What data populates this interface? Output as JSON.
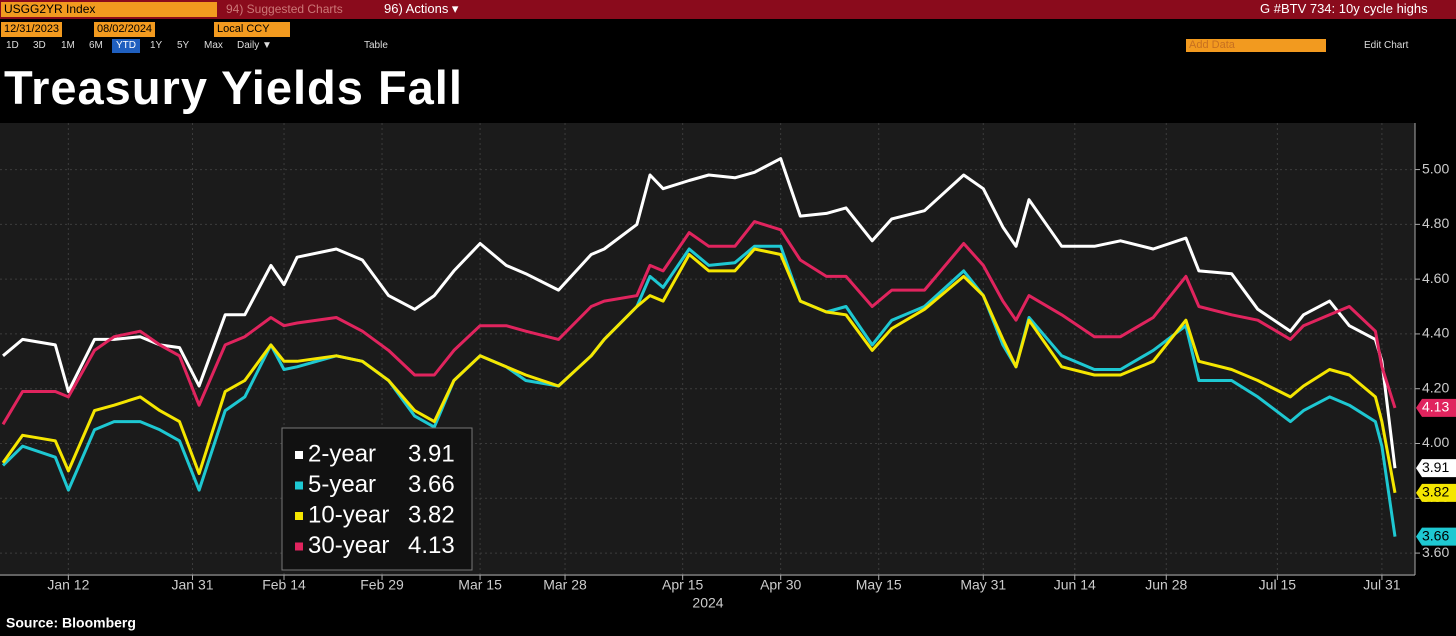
{
  "toolbar": {
    "security": "USGG2YR Index",
    "suggested": "94) Suggested Charts",
    "actions": "96) Actions ▾",
    "news": "G #BTV 734: 10y cycle highs",
    "start_date": "12/31/2023",
    "end_date": "08/02/2024",
    "currency": "Local CCY",
    "periods": [
      "1D",
      "3D",
      "1M",
      "6M",
      "YTD",
      "1Y",
      "5Y",
      "Max"
    ],
    "frequency": "Daily ▼",
    "table": "Table",
    "add_data": "Add Data",
    "edit_chart": "Edit Chart"
  },
  "source": "Source: Bloomberg",
  "chart_data": {
    "type": "line",
    "title": "Treasury Yields Fall",
    "xlabel": "2024",
    "x": [
      "2024-01-02",
      "2024-01-05",
      "2024-01-10",
      "2024-01-12",
      "2024-01-16",
      "2024-01-19",
      "2024-01-23",
      "2024-01-26",
      "2024-01-29",
      "2024-02-01",
      "2024-02-05",
      "2024-02-08",
      "2024-02-12",
      "2024-02-14",
      "2024-02-16",
      "2024-02-22",
      "2024-02-26",
      "2024-03-01",
      "2024-03-05",
      "2024-03-08",
      "2024-03-11",
      "2024-03-15",
      "2024-03-19",
      "2024-03-22",
      "2024-03-27",
      "2024-04-01",
      "2024-04-03",
      "2024-04-08",
      "2024-04-10",
      "2024-04-12",
      "2024-04-16",
      "2024-04-19",
      "2024-04-23",
      "2024-04-26",
      "2024-04-30",
      "2024-05-03",
      "2024-05-07",
      "2024-05-10",
      "2024-05-14",
      "2024-05-17",
      "2024-05-22",
      "2024-05-28",
      "2024-05-31",
      "2024-06-03",
      "2024-06-05",
      "2024-06-07",
      "2024-06-12",
      "2024-06-17",
      "2024-06-21",
      "2024-06-26",
      "2024-07-01",
      "2024-07-03",
      "2024-07-08",
      "2024-07-12",
      "2024-07-17",
      "2024-07-19",
      "2024-07-23",
      "2024-07-26",
      "2024-07-30",
      "2024-07-31",
      "2024-08-02"
    ],
    "series": [
      {
        "name": "2-year",
        "color": "#ffffff",
        "values": [
          4.32,
          4.38,
          4.36,
          4.19,
          4.38,
          4.38,
          4.39,
          4.36,
          4.35,
          4.21,
          4.47,
          4.47,
          4.65,
          4.58,
          4.68,
          4.71,
          4.67,
          4.54,
          4.49,
          4.54,
          4.63,
          4.73,
          4.65,
          4.62,
          4.56,
          4.69,
          4.71,
          4.8,
          4.98,
          4.93,
          4.96,
          4.98,
          4.97,
          4.99,
          5.04,
          4.83,
          4.84,
          4.86,
          4.74,
          4.82,
          4.85,
          4.98,
          4.93,
          4.79,
          4.72,
          4.89,
          4.72,
          4.72,
          4.74,
          4.71,
          4.75,
          4.63,
          4.62,
          4.49,
          4.41,
          4.47,
          4.52,
          4.43,
          4.38,
          4.3,
          3.91
        ]
      },
      {
        "name": "5-year",
        "color": "#1ec8d2",
        "values": [
          3.92,
          3.99,
          3.95,
          3.83,
          4.05,
          4.08,
          4.08,
          4.05,
          4.01,
          3.83,
          4.12,
          4.17,
          4.36,
          4.27,
          4.28,
          4.32,
          4.3,
          4.23,
          4.1,
          4.06,
          4.23,
          4.32,
          4.28,
          4.23,
          4.21,
          4.32,
          4.38,
          4.5,
          4.61,
          4.57,
          4.71,
          4.65,
          4.66,
          4.72,
          4.72,
          4.52,
          4.48,
          4.5,
          4.36,
          4.45,
          4.5,
          4.63,
          4.54,
          4.36,
          4.28,
          4.46,
          4.32,
          4.27,
          4.27,
          4.34,
          4.43,
          4.23,
          4.23,
          4.17,
          4.08,
          4.12,
          4.17,
          4.14,
          4.08,
          3.99,
          3.66
        ]
      },
      {
        "name": "10-year",
        "color": "#f5e600",
        "values": [
          3.93,
          4.03,
          4.01,
          3.9,
          4.12,
          4.14,
          4.17,
          4.12,
          4.08,
          3.89,
          4.19,
          4.23,
          4.36,
          4.3,
          4.3,
          4.32,
          4.3,
          4.23,
          4.12,
          4.08,
          4.23,
          4.32,
          4.28,
          4.25,
          4.21,
          4.32,
          4.38,
          4.5,
          4.54,
          4.52,
          4.69,
          4.63,
          4.63,
          4.71,
          4.69,
          4.52,
          4.48,
          4.47,
          4.34,
          4.42,
          4.49,
          4.61,
          4.54,
          4.38,
          4.28,
          4.45,
          4.28,
          4.25,
          4.25,
          4.3,
          4.45,
          4.3,
          4.27,
          4.23,
          4.17,
          4.21,
          4.27,
          4.25,
          4.17,
          4.08,
          3.82
        ]
      },
      {
        "name": "30-year",
        "color": "#e0245e",
        "values": [
          4.07,
          4.19,
          4.19,
          4.17,
          4.34,
          4.39,
          4.41,
          4.36,
          4.32,
          4.14,
          4.36,
          4.39,
          4.46,
          4.43,
          4.44,
          4.46,
          4.41,
          4.34,
          4.25,
          4.25,
          4.34,
          4.43,
          4.43,
          4.41,
          4.38,
          4.5,
          4.52,
          4.54,
          4.65,
          4.63,
          4.77,
          4.72,
          4.72,
          4.81,
          4.78,
          4.67,
          4.61,
          4.61,
          4.5,
          4.56,
          4.56,
          4.73,
          4.65,
          4.52,
          4.45,
          4.54,
          4.47,
          4.39,
          4.39,
          4.46,
          4.61,
          4.5,
          4.47,
          4.45,
          4.38,
          4.43,
          4.47,
          4.5,
          4.41,
          4.28,
          4.13
        ]
      }
    ],
    "xlim": [
      "2024-01-02",
      "2024-08-02"
    ],
    "xticks": [
      {
        "value": "2024-01-12",
        "label": "Jan 12"
      },
      {
        "value": "2024-01-31",
        "label": "Jan 31"
      },
      {
        "value": "2024-02-14",
        "label": "Feb 14"
      },
      {
        "value": "2024-02-29",
        "label": "Feb 29"
      },
      {
        "value": "2024-03-15",
        "label": "Mar 15"
      },
      {
        "value": "2024-03-28",
        "label": "Mar 28"
      },
      {
        "value": "2024-04-15",
        "label": "Apr 15"
      },
      {
        "value": "2024-04-30",
        "label": "Apr 30"
      },
      {
        "value": "2024-05-15",
        "label": "May 15"
      },
      {
        "value": "2024-05-31",
        "label": "May 31"
      },
      {
        "value": "2024-06-14",
        "label": "Jun 14"
      },
      {
        "value": "2024-06-28",
        "label": "Jun 28"
      },
      {
        "value": "2024-07-15",
        "label": "Jul 15"
      },
      {
        "value": "2024-07-31",
        "label": "Jul 31"
      }
    ],
    "ylim": [
      3.52,
      5.17
    ],
    "yticks": [
      {
        "value": 3.6,
        "label": "3.60"
      },
      {
        "value": 3.8,
        "label": "3.80"
      },
      {
        "value": 4,
        "label": "4.00"
      },
      {
        "value": 4.2,
        "label": "4.20"
      },
      {
        "value": 4.4,
        "label": "4.40"
      },
      {
        "value": 4.6,
        "label": "4.60"
      },
      {
        "value": 4.8,
        "label": "4.80"
      },
      {
        "value": 5,
        "label": "5.00"
      }
    ],
    "grid": true
  }
}
